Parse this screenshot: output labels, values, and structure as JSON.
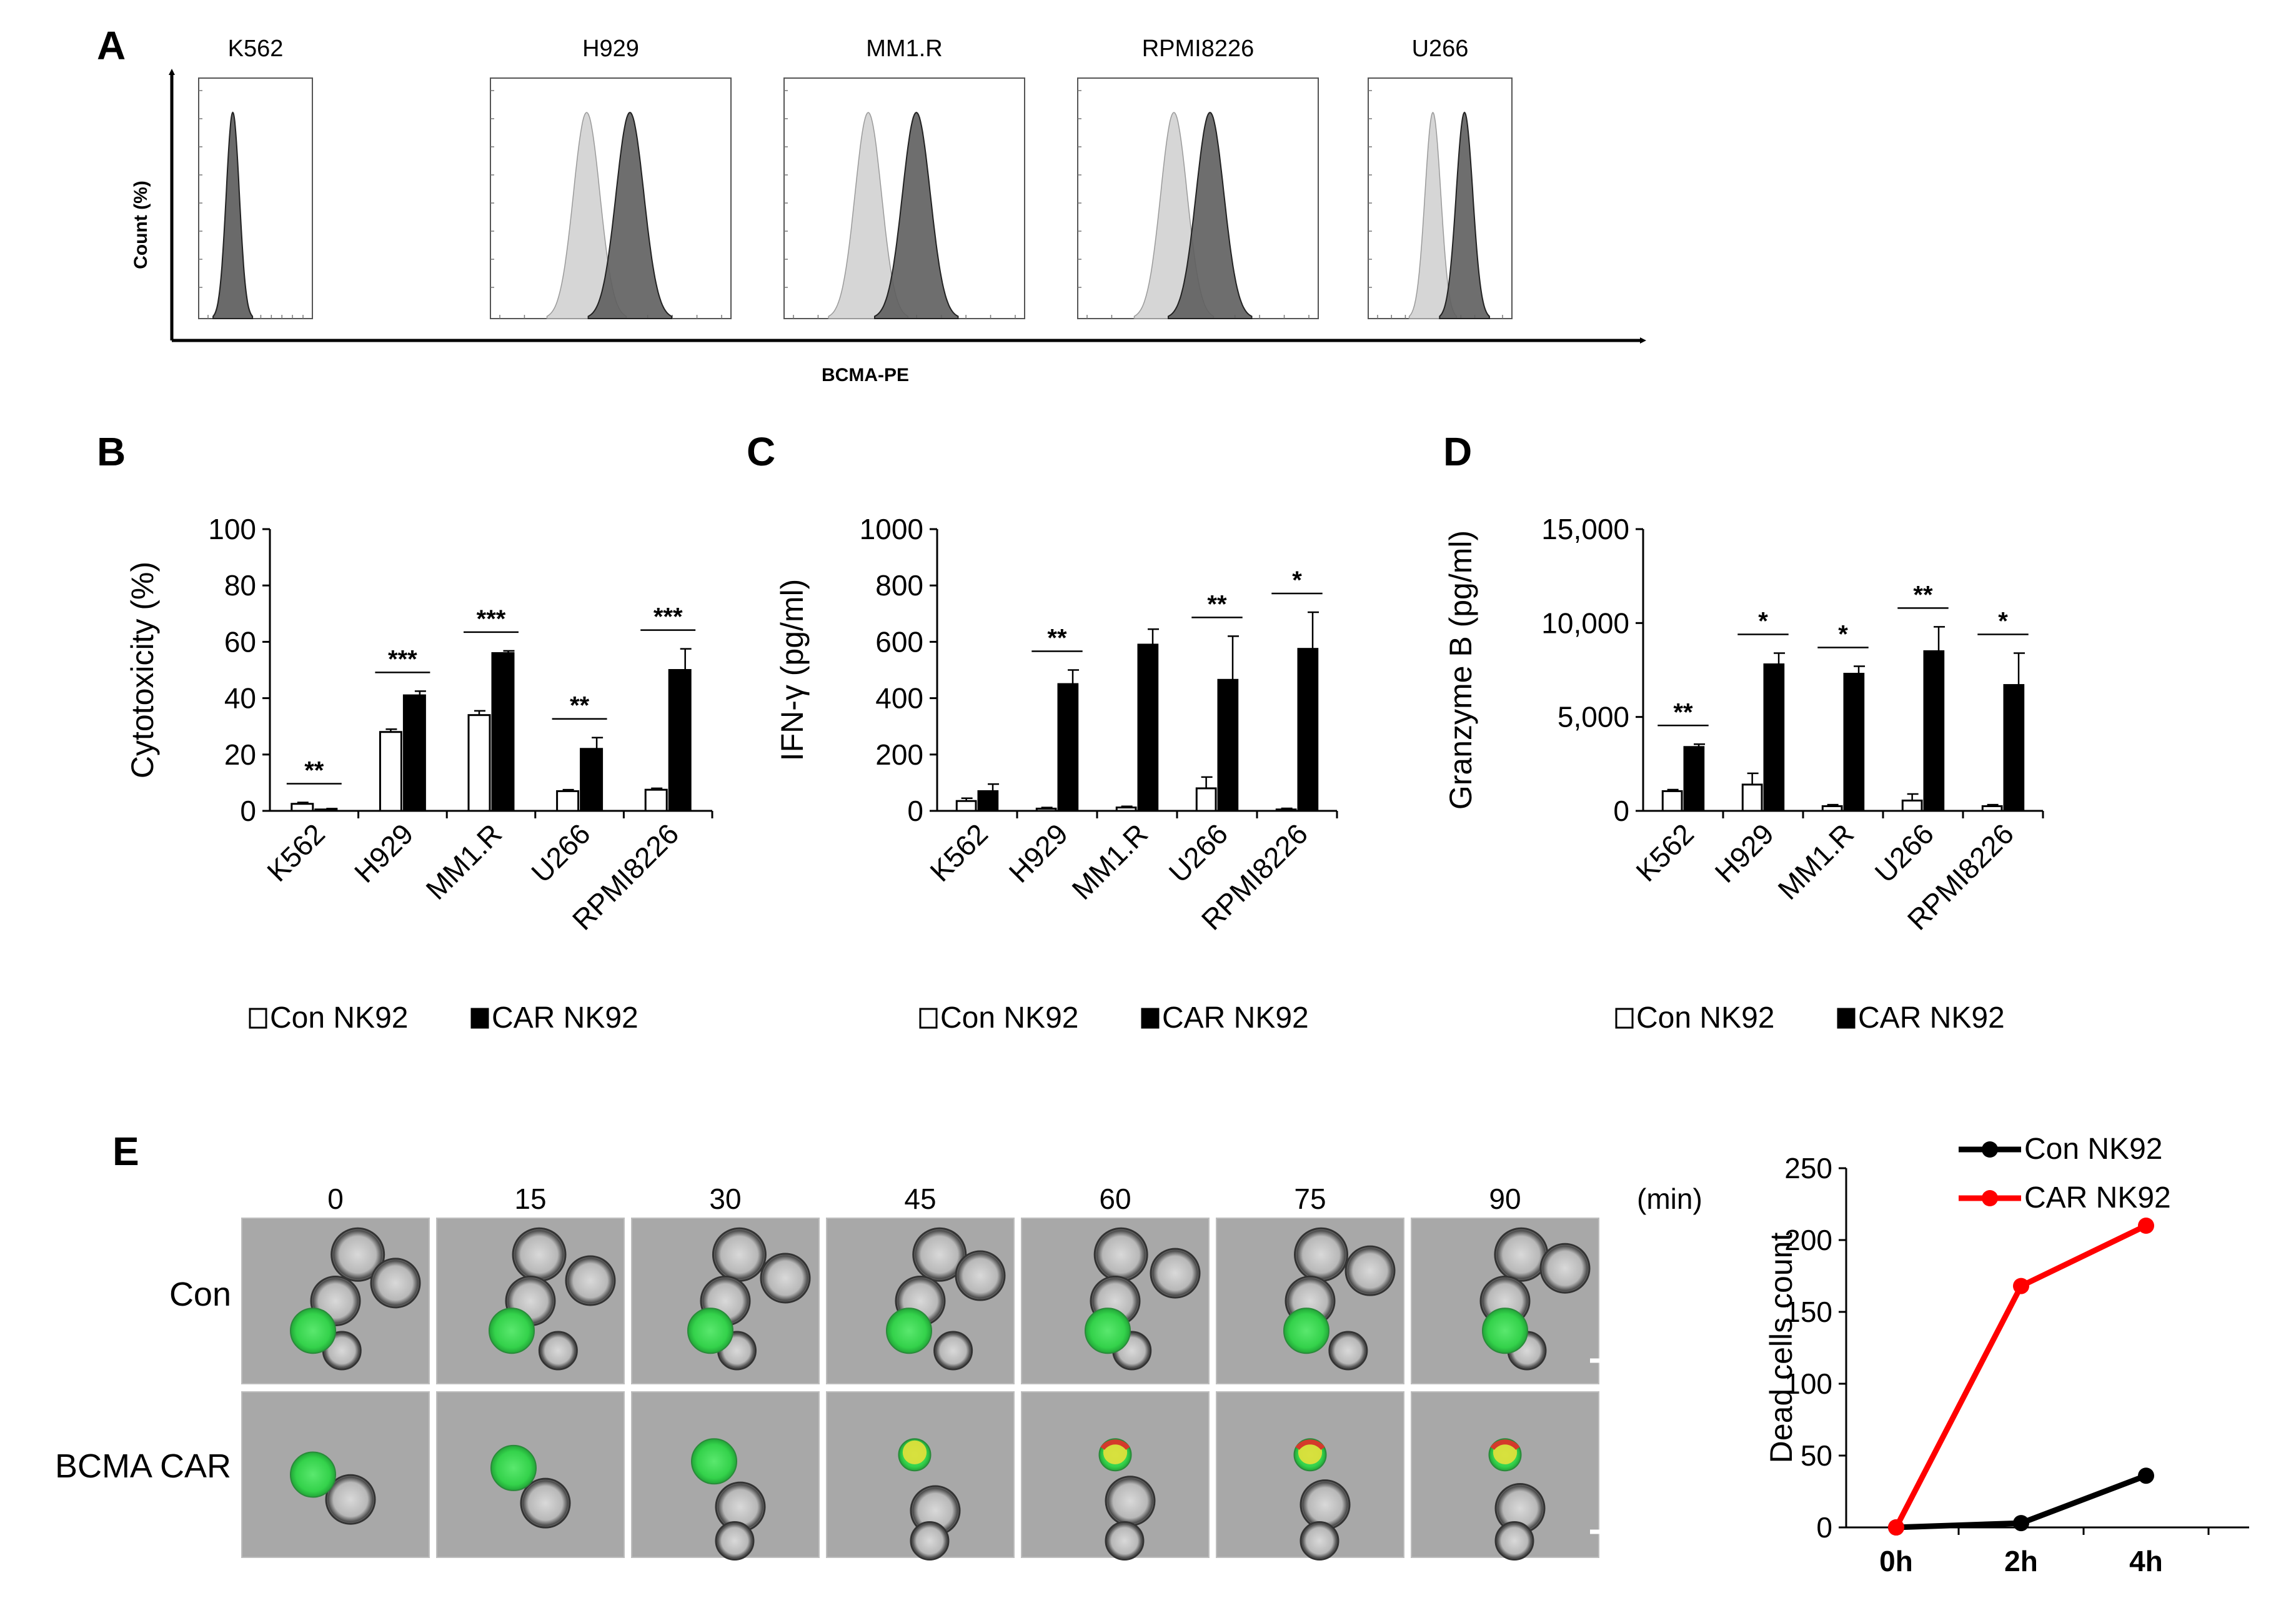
{
  "panel_letters": [
    "A",
    "B",
    "C",
    "D",
    "E"
  ],
  "colors": {
    "bar_con": "#ffffff",
    "bar_car": "#000000",
    "hist_light": "#d6d6d6",
    "hist_dark": "#5e5e5e",
    "line_con": "#000000",
    "line_car": "#ff0000",
    "green": "#34d24b",
    "yellow": "#e6e03a",
    "red": "#d43a2b"
  },
  "chart_data": [
    {
      "id": "A",
      "type": "histogram-overlay",
      "ylabel": "Count (%)",
      "xlabel": "BCMA-PE",
      "cell_lines": [
        {
          "title": "K562",
          "control_mode": 0.3,
          "bcma_mode": 0.3
        },
        {
          "title": "H929",
          "control_mode": 0.4,
          "bcma_mode": 0.58
        },
        {
          "title": "MM1.R",
          "control_mode": 0.35,
          "bcma_mode": 0.55
        },
        {
          "title": "RPMI8226",
          "control_mode": 0.4,
          "bcma_mode": 0.55
        },
        {
          "title": "U266",
          "control_mode": 0.45,
          "bcma_mode": 0.67
        }
      ]
    },
    {
      "id": "B",
      "type": "bar",
      "categories": [
        "K562",
        "H929",
        "MM1.R",
        "U266",
        "RPMI8226"
      ],
      "series": [
        {
          "name": "Con NK92",
          "values": [
            2.5,
            28,
            34,
            7,
            7.5
          ],
          "errors": [
            0.5,
            1,
            1.5,
            0.5,
            0.5
          ]
        },
        {
          "name": "CAR NK92",
          "values": [
            0.5,
            41,
            56,
            22,
            50
          ],
          "errors": [
            0.3,
            1.5,
            0.8,
            4,
            7.5
          ]
        }
      ],
      "significance": [
        "**",
        "***",
        "***",
        "**",
        "***"
      ],
      "ylabel": "Cytotoxicity (%)",
      "ylim": [
        0,
        100
      ],
      "yticks": [
        "0",
        "20",
        "40",
        "60",
        "80",
        "100"
      ]
    },
    {
      "id": "C",
      "type": "bar",
      "categories": [
        "K562",
        "H929",
        "MM1.R",
        "U266",
        "RPMI8226"
      ],
      "series": [
        {
          "name": "Con NK92",
          "values": [
            35,
            8,
            12,
            80,
            5
          ],
          "errors": [
            10,
            4,
            4,
            40,
            4
          ]
        },
        {
          "name": "CAR NK92",
          "values": [
            70,
            450,
            590,
            465,
            575
          ],
          "errors": [
            25,
            50,
            55,
            155,
            130
          ]
        }
      ],
      "significance": [
        "",
        "**",
        "",
        "**",
        "*"
      ],
      "ylabel": "IFN-γ (pg/ml)",
      "ylim": [
        0,
        1000
      ],
      "yticks": [
        "0",
        "200",
        "400",
        "600",
        "800",
        "1000"
      ]
    },
    {
      "id": "D",
      "type": "bar",
      "categories": [
        "K562",
        "H929",
        "MM1.R",
        "U266",
        "RPMI8226"
      ],
      "series": [
        {
          "name": "Con NK92",
          "values": [
            1050,
            1400,
            250,
            550,
            250
          ],
          "errors": [
            80,
            600,
            80,
            350,
            80
          ]
        },
        {
          "name": "CAR NK92",
          "values": [
            3400,
            7800,
            7300,
            8500,
            6700
          ],
          "errors": [
            150,
            600,
            400,
            1300,
            1700
          ]
        }
      ],
      "significance": [
        "**",
        "*",
        "*",
        "**",
        "*"
      ],
      "ylabel": "Granzyme B (pg/ml)",
      "ylim": [
        0,
        15000
      ],
      "yticks": [
        "0",
        "5,000",
        "10,000",
        "15,000"
      ]
    },
    {
      "id": "E-line",
      "type": "line",
      "categories": [
        "0h",
        "2h",
        "4h"
      ],
      "series": [
        {
          "name": "Con NK92",
          "values": [
            0,
            3,
            36
          ]
        },
        {
          "name": "CAR NK92",
          "values": [
            0,
            168,
            210
          ]
        }
      ],
      "ylabel": "Dead cells count",
      "ylim": [
        0,
        250
      ],
      "yticks": [
        "0",
        "50",
        "100",
        "150",
        "200",
        "250"
      ]
    }
  ],
  "panelE": {
    "times": [
      "0",
      "15",
      "30",
      "45",
      "60",
      "75",
      "90"
    ],
    "time_unit": "(min)",
    "rows": [
      "Con",
      "BCMA CAR"
    ]
  }
}
